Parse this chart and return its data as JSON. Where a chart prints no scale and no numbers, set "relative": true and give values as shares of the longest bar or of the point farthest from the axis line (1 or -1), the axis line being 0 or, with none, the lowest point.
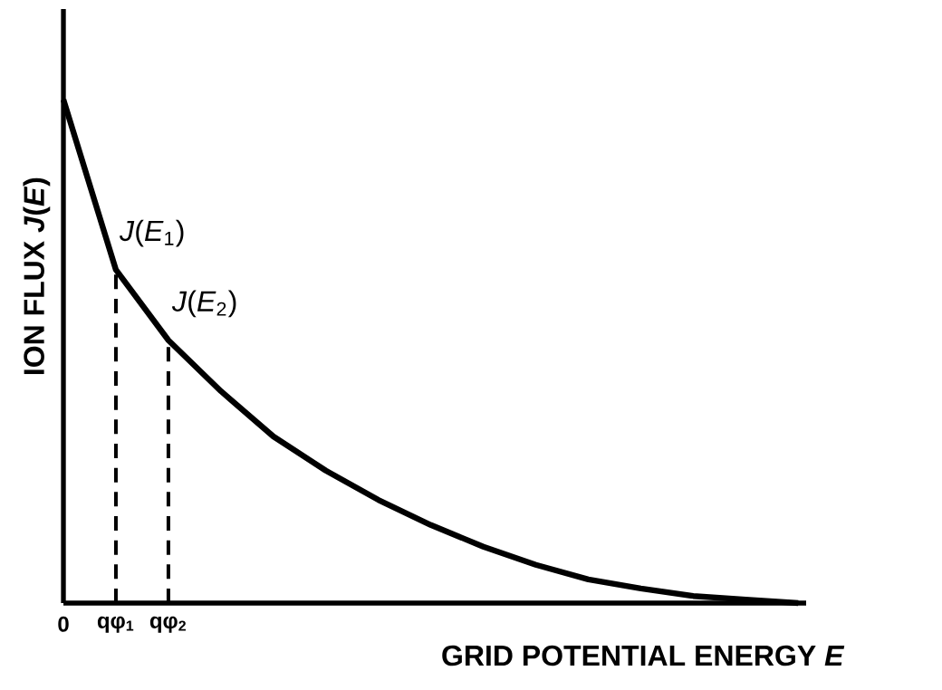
{
  "chart_data": {
    "type": "line",
    "relative": true,
    "xlabel": "GRID POTENTIAL ENERGY *E*",
    "ylabel": "ION FLUX *J*(*E*)",
    "categories": [
      "0",
      "qφ$_{1}$",
      "qφ$_{2}$",
      null,
      null,
      null,
      null,
      null,
      null,
      null,
      null,
      null,
      null,
      null,
      null
    ],
    "series": [
      {
        "color": "#000000",
        "values": [
          1,
          0.662,
          0.522,
          0.421,
          0.331,
          0.263,
          0.205,
          0.155,
          0.112,
          0.076,
          0.047,
          0.029,
          0.014,
          0.007,
          0
        ]
      }
    ],
    "ref_lines": [
      {
        "axis": "x",
        "value": "qφ$_{1}$",
        "line_style": "dashed",
        "color": "#000000"
      },
      {
        "axis": "x",
        "value": "qφ$_{2}$",
        "line_style": "dashed",
        "color": "#000000"
      }
    ],
    "annotations": [
      {
        "text": "*J*(*E*$_{1}$)",
        "x": "qφ$_{1}$",
        "y": 0.662
      },
      {
        "text": "*J*(*E*$_{2}$)",
        "x": "qφ$_{2}$",
        "y": 0.522
      }
    ]
  }
}
